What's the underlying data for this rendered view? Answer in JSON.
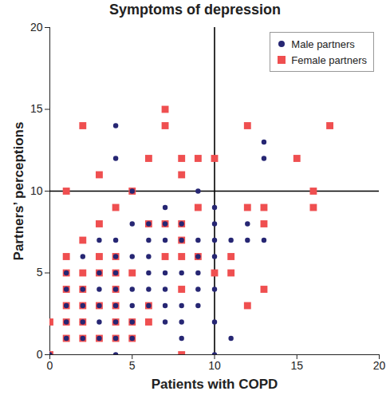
{
  "chart_data": {
    "type": "scatter",
    "title": "Symptoms of depression",
    "x_label": "Patients with COPD",
    "y_label": "Partners’ perceptions",
    "xlim": [
      0,
      20
    ],
    "ylim": [
      0,
      20
    ],
    "xticks": [
      0,
      5,
      10,
      15,
      20
    ],
    "yticks": [
      0,
      5,
      10,
      15,
      20
    ],
    "grid": false,
    "legend": "top-right",
    "reference_lines": {
      "x": 10,
      "y": 10
    },
    "series": [
      {
        "name": "Male partners",
        "color": "#262673",
        "marker": "circle",
        "x": [
          0,
          1,
          1,
          1,
          1,
          1,
          2,
          2,
          2,
          2,
          2,
          3,
          3,
          3,
          3,
          3,
          3,
          4,
          4,
          4,
          4,
          4,
          4,
          4,
          4,
          4,
          4,
          5,
          5,
          5,
          5,
          5,
          5,
          5,
          6,
          6,
          6,
          6,
          6,
          6,
          7,
          7,
          7,
          7,
          7,
          7,
          7,
          8,
          8,
          8,
          8,
          8,
          8,
          9,
          9,
          9,
          9,
          9,
          9,
          10,
          10,
          10,
          10,
          10,
          10,
          10,
          11,
          11,
          12,
          12,
          13,
          13,
          13
        ],
        "y": [
          0,
          1,
          2,
          3,
          4,
          5,
          1,
          2,
          3,
          4,
          6,
          1,
          2,
          3,
          4,
          5,
          7,
          0,
          1,
          2,
          3,
          4,
          5,
          6,
          7,
          12,
          14,
          1,
          2,
          3,
          4,
          6,
          8,
          10,
          3,
          4,
          5,
          6,
          7,
          8,
          2,
          3,
          4,
          5,
          7,
          8,
          9,
          1,
          2,
          3,
          5,
          7,
          8,
          3,
          4,
          5,
          6,
          7,
          10,
          0,
          2,
          4,
          6,
          7,
          8,
          9,
          1,
          7,
          7,
          8,
          7,
          12,
          13
        ]
      },
      {
        "name": "Female partners",
        "color": "#ef4f50",
        "marker": "square",
        "x": [
          0,
          0,
          1,
          1,
          1,
          1,
          1,
          1,
          1,
          2,
          2,
          2,
          2,
          2,
          2,
          2,
          3,
          3,
          3,
          3,
          3,
          3,
          4,
          4,
          4,
          4,
          4,
          4,
          4,
          5,
          5,
          5,
          5,
          6,
          6,
          6,
          6,
          7,
          7,
          7,
          7,
          8,
          8,
          8,
          8,
          8,
          8,
          8,
          9,
          9,
          9,
          10,
          10,
          11,
          11,
          12,
          12,
          12,
          13,
          13,
          13,
          15,
          16,
          16,
          17
        ],
        "y": [
          0,
          2,
          10,
          6,
          5,
          4,
          3,
          2,
          1,
          14,
          7,
          5,
          4,
          3,
          2,
          1,
          11,
          8,
          6,
          5,
          3,
          1,
          9,
          6,
          5,
          4,
          3,
          2,
          1,
          10,
          5,
          2,
          1,
          12,
          8,
          3,
          2,
          15,
          14,
          8,
          6,
          12,
          11,
          8,
          7,
          6,
          4,
          0,
          12,
          9,
          6,
          12,
          5,
          6,
          5,
          14,
          9,
          3,
          9,
          8,
          4,
          12,
          10,
          9,
          14
        ]
      }
    ]
  }
}
